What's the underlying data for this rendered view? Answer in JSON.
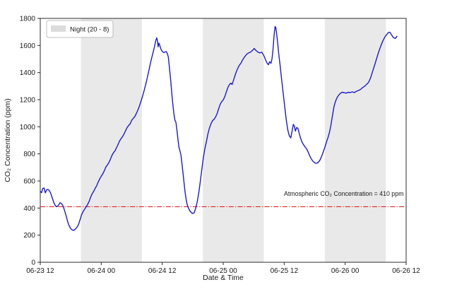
{
  "figure": {
    "background": "#ffffff",
    "xlabel": "Date & Time",
    "ylabel": "CO₂ Concentration (ppm)",
    "annotation": {
      "text": "Atmospheric CO₂ Concentration = 410 ppm"
    },
    "legend": {
      "label": "Night (20 - 8)",
      "swatch_color": "#dcdcdc"
    }
  },
  "chart_data": {
    "type": "line",
    "title": "",
    "xlabel": "Date & Time",
    "ylabel": "CO2 Concentration (ppm)",
    "x_unit": "hours since 06-23 12:00",
    "xlim": [
      0,
      72
    ],
    "ylim": [
      0,
      1800
    ],
    "grid": false,
    "y_ticks": [
      0,
      200,
      400,
      600,
      800,
      1000,
      1200,
      1400,
      1600,
      1800
    ],
    "x_ticks": [
      {
        "h": 0,
        "label": "06-23 12"
      },
      {
        "h": 12,
        "label": "06-24 00"
      },
      {
        "h": 24,
        "label": "06-24 12"
      },
      {
        "h": 36,
        "label": "06-25 00"
      },
      {
        "h": 48,
        "label": "06-25 12"
      },
      {
        "h": 60,
        "label": "06-26 00"
      },
      {
        "h": 72,
        "label": "06-26 12"
      }
    ],
    "night_bands_hours": [
      [
        8,
        20
      ],
      [
        32,
        44
      ],
      [
        56,
        68
      ]
    ],
    "night_band_color": "#e9e9e9",
    "legend": {
      "position": "upper left",
      "entries": [
        {
          "label": "Night (20 - 8)",
          "color": "#dcdcdc"
        }
      ]
    },
    "reference_line": {
      "value": 410,
      "color": "#e8231f",
      "style": "dashdot",
      "label": "Atmospheric CO2 Concentration = 410 ppm"
    },
    "axis_color": "#2b2b2b",
    "series": [
      {
        "name": "CO2 concentration",
        "color": "#1b1bd8",
        "points": [
          [
            0,
            524
          ],
          [
            0.25,
            514
          ],
          [
            0.5,
            546
          ],
          [
            0.75,
            548
          ],
          [
            1.0,
            512
          ],
          [
            1.25,
            535
          ],
          [
            1.5,
            538
          ],
          [
            1.8,
            528
          ],
          [
            2.1,
            505
          ],
          [
            2.4,
            470
          ],
          [
            2.7,
            438
          ],
          [
            3.0,
            416
          ],
          [
            3.3,
            410
          ],
          [
            3.6,
            422
          ],
          [
            3.9,
            440
          ],
          [
            4.2,
            432
          ],
          [
            4.5,
            415
          ],
          [
            4.8,
            380
          ],
          [
            5.1,
            342
          ],
          [
            5.4,
            300
          ],
          [
            5.7,
            268
          ],
          [
            6.0,
            248
          ],
          [
            6.3,
            238
          ],
          [
            6.6,
            236
          ],
          [
            6.9,
            244
          ],
          [
            7.2,
            258
          ],
          [
            7.5,
            276
          ],
          [
            7.8,
            310
          ],
          [
            8.1,
            348
          ],
          [
            8.4,
            372
          ],
          [
            8.7,
            390
          ],
          [
            9.0,
            408
          ],
          [
            9.3,
            425
          ],
          [
            9.6,
            448
          ],
          [
            9.9,
            478
          ],
          [
            10.2,
            505
          ],
          [
            10.5,
            522
          ],
          [
            10.8,
            545
          ],
          [
            11.1,
            565
          ],
          [
            11.4,
            592
          ],
          [
            11.7,
            615
          ],
          [
            12.0,
            635
          ],
          [
            12.3,
            652
          ],
          [
            12.6,
            675
          ],
          [
            12.9,
            702
          ],
          [
            13.2,
            718
          ],
          [
            13.5,
            735
          ],
          [
            13.8,
            760
          ],
          [
            14.1,
            788
          ],
          [
            14.4,
            808
          ],
          [
            14.7,
            822
          ],
          [
            15.0,
            845
          ],
          [
            15.3,
            868
          ],
          [
            15.6,
            895
          ],
          [
            15.9,
            912
          ],
          [
            16.2,
            928
          ],
          [
            16.5,
            948
          ],
          [
            16.8,
            972
          ],
          [
            17.1,
            995
          ],
          [
            17.4,
            1010
          ],
          [
            17.7,
            1022
          ],
          [
            18.0,
            1048
          ],
          [
            18.3,
            1062
          ],
          [
            18.6,
            1075
          ],
          [
            18.9,
            1098
          ],
          [
            19.2,
            1122
          ],
          [
            19.5,
            1152
          ],
          [
            19.8,
            1185
          ],
          [
            20.1,
            1222
          ],
          [
            20.4,
            1262
          ],
          [
            20.7,
            1305
          ],
          [
            21.0,
            1352
          ],
          [
            21.3,
            1402
          ],
          [
            21.6,
            1455
          ],
          [
            21.9,
            1505
          ],
          [
            22.2,
            1548
          ],
          [
            22.5,
            1595
          ],
          [
            22.7,
            1632
          ],
          [
            22.9,
            1656
          ],
          [
            23.05,
            1638
          ],
          [
            23.2,
            1590
          ],
          [
            23.35,
            1618
          ],
          [
            23.5,
            1602
          ],
          [
            23.7,
            1578
          ],
          [
            23.9,
            1562
          ],
          [
            24.1,
            1552
          ],
          [
            24.3,
            1548
          ],
          [
            24.55,
            1552
          ],
          [
            24.8,
            1555
          ],
          [
            25.0,
            1540
          ],
          [
            25.2,
            1515
          ],
          [
            25.45,
            1425
          ],
          [
            25.7,
            1330
          ],
          [
            25.9,
            1240
          ],
          [
            26.1,
            1160
          ],
          [
            26.3,
            1095
          ],
          [
            26.5,
            1048
          ],
          [
            26.7,
            1032
          ],
          [
            26.9,
            975
          ],
          [
            27.1,
            905
          ],
          [
            27.3,
            848
          ],
          [
            27.5,
            822
          ],
          [
            27.7,
            788
          ],
          [
            27.9,
            722
          ],
          [
            28.1,
            655
          ],
          [
            28.3,
            585
          ],
          [
            28.5,
            518
          ],
          [
            28.7,
            465
          ],
          [
            28.9,
            428
          ],
          [
            29.1,
            405
          ],
          [
            29.4,
            382
          ],
          [
            29.7,
            368
          ],
          [
            30.0,
            360
          ],
          [
            30.3,
            366
          ],
          [
            30.6,
            398
          ],
          [
            30.9,
            448
          ],
          [
            31.2,
            515
          ],
          [
            31.5,
            598
          ],
          [
            31.8,
            688
          ],
          [
            32.1,
            772
          ],
          [
            32.4,
            840
          ],
          [
            32.7,
            892
          ],
          [
            33.0,
            948
          ],
          [
            33.3,
            992
          ],
          [
            33.6,
            1022
          ],
          [
            33.9,
            1045
          ],
          [
            34.2,
            1055
          ],
          [
            34.5,
            1072
          ],
          [
            34.8,
            1098
          ],
          [
            35.1,
            1132
          ],
          [
            35.4,
            1165
          ],
          [
            35.7,
            1185
          ],
          [
            36.0,
            1198
          ],
          [
            36.3,
            1222
          ],
          [
            36.6,
            1255
          ],
          [
            36.9,
            1288
          ],
          [
            37.2,
            1310
          ],
          [
            37.5,
            1322
          ],
          [
            37.75,
            1312
          ],
          [
            38.0,
            1340
          ],
          [
            38.3,
            1375
          ],
          [
            38.6,
            1408
          ],
          [
            38.9,
            1435
          ],
          [
            39.2,
            1455
          ],
          [
            39.5,
            1470
          ],
          [
            39.8,
            1492
          ],
          [
            40.1,
            1510
          ],
          [
            40.4,
            1525
          ],
          [
            40.7,
            1538
          ],
          [
            41.0,
            1545
          ],
          [
            41.4,
            1552
          ],
          [
            41.8,
            1565
          ],
          [
            42.1,
            1578
          ],
          [
            42.4,
            1565
          ],
          [
            42.8,
            1552
          ],
          [
            43.2,
            1545
          ],
          [
            43.6,
            1550
          ],
          [
            44.0,
            1525
          ],
          [
            44.3,
            1498
          ],
          [
            44.6,
            1472
          ],
          [
            44.9,
            1458
          ],
          [
            45.15,
            1480
          ],
          [
            45.4,
            1468
          ],
          [
            45.6,
            1502
          ],
          [
            45.8,
            1568
          ],
          [
            46.0,
            1668
          ],
          [
            46.2,
            1740
          ],
          [
            46.35,
            1732
          ],
          [
            46.5,
            1692
          ],
          [
            46.7,
            1625
          ],
          [
            46.9,
            1548
          ],
          [
            47.2,
            1452
          ],
          [
            47.5,
            1350
          ],
          [
            47.8,
            1248
          ],
          [
            48.1,
            1148
          ],
          [
            48.4,
            1055
          ],
          [
            48.7,
            978
          ],
          [
            49.0,
            935
          ],
          [
            49.3,
            918
          ],
          [
            49.55,
            968
          ],
          [
            49.8,
            1018
          ],
          [
            50.0,
            1005
          ],
          [
            50.2,
            968
          ],
          [
            50.45,
            995
          ],
          [
            50.7,
            988
          ],
          [
            50.95,
            952
          ],
          [
            51.2,
            918
          ],
          [
            51.5,
            888
          ],
          [
            51.8,
            868
          ],
          [
            52.1,
            852
          ],
          [
            52.4,
            838
          ],
          [
            52.7,
            815
          ],
          [
            53.0,
            788
          ],
          [
            53.3,
            765
          ],
          [
            53.6,
            748
          ],
          [
            53.9,
            738
          ],
          [
            54.2,
            730
          ],
          [
            54.5,
            732
          ],
          [
            54.8,
            742
          ],
          [
            55.1,
            758
          ],
          [
            55.4,
            785
          ],
          [
            55.7,
            815
          ],
          [
            56.0,
            848
          ],
          [
            56.3,
            885
          ],
          [
            56.6,
            918
          ],
          [
            56.9,
            958
          ],
          [
            57.2,
            1012
          ],
          [
            57.5,
            1082
          ],
          [
            57.8,
            1148
          ],
          [
            58.1,
            1188
          ],
          [
            58.4,
            1215
          ],
          [
            58.7,
            1232
          ],
          [
            59.0,
            1245
          ],
          [
            59.4,
            1255
          ],
          [
            59.8,
            1252
          ],
          [
            60.2,
            1248
          ],
          [
            60.6,
            1255
          ],
          [
            61.0,
            1252
          ],
          [
            61.4,
            1258
          ],
          [
            61.8,
            1252
          ],
          [
            62.2,
            1262
          ],
          [
            62.6,
            1268
          ],
          [
            63.0,
            1275
          ],
          [
            63.4,
            1288
          ],
          [
            63.8,
            1298
          ],
          [
            64.2,
            1312
          ],
          [
            64.6,
            1328
          ],
          [
            65.0,
            1360
          ],
          [
            65.4,
            1408
          ],
          [
            65.8,
            1455
          ],
          [
            66.2,
            1505
          ],
          [
            66.6,
            1552
          ],
          [
            67.0,
            1595
          ],
          [
            67.4,
            1632
          ],
          [
            67.8,
            1662
          ],
          [
            68.2,
            1682
          ],
          [
            68.5,
            1695
          ],
          [
            68.8,
            1698
          ],
          [
            69.1,
            1680
          ],
          [
            69.5,
            1658
          ],
          [
            69.9,
            1652
          ],
          [
            70.2,
            1668
          ]
        ]
      }
    ]
  }
}
